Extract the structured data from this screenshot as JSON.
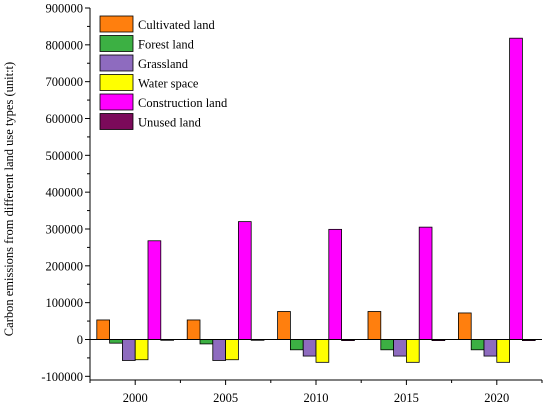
{
  "chart_data": {
    "type": "bar",
    "categories": [
      "2000",
      "2005",
      "2010",
      "2015",
      "2020"
    ],
    "xlabel": "",
    "ylabel": "Carbon emissions from different land use types (unit:t)",
    "ylim": [
      -110000,
      900000
    ],
    "yticks": [
      -100000,
      0,
      100000,
      200000,
      300000,
      400000,
      500000,
      600000,
      700000,
      800000,
      900000
    ],
    "ytick_labels": [
      "-100000",
      "0",
      "100000",
      "200000",
      "300000",
      "400000",
      "500000",
      "600000",
      "700000",
      "800000",
      "900000"
    ],
    "legend_position": "top-left",
    "grid": false,
    "series": [
      {
        "name": "Cultivated land",
        "color": "#ff7f0e",
        "values": [
          53000,
          53000,
          76000,
          76000,
          72000
        ]
      },
      {
        "name": "Forest land",
        "color": "#3cb043",
        "values": [
          -10000,
          -12000,
          -28000,
          -28000,
          -28000
        ]
      },
      {
        "name": "Grassland",
        "color": "#8e6bbf",
        "values": [
          -57000,
          -57000,
          -45000,
          -45000,
          -45000
        ]
      },
      {
        "name": "Water space",
        "color": "#ffff00",
        "values": [
          -55000,
          -55000,
          -62000,
          -62000,
          -62000
        ]
      },
      {
        "name": "Construction land",
        "color": "#ff00ff",
        "values": [
          268000,
          320000,
          299000,
          305000,
          818000
        ]
      },
      {
        "name": "Unused land",
        "color": "#7b0a5a",
        "values": [
          -2000,
          -2000,
          -3000,
          -3000,
          -3000
        ]
      }
    ]
  }
}
